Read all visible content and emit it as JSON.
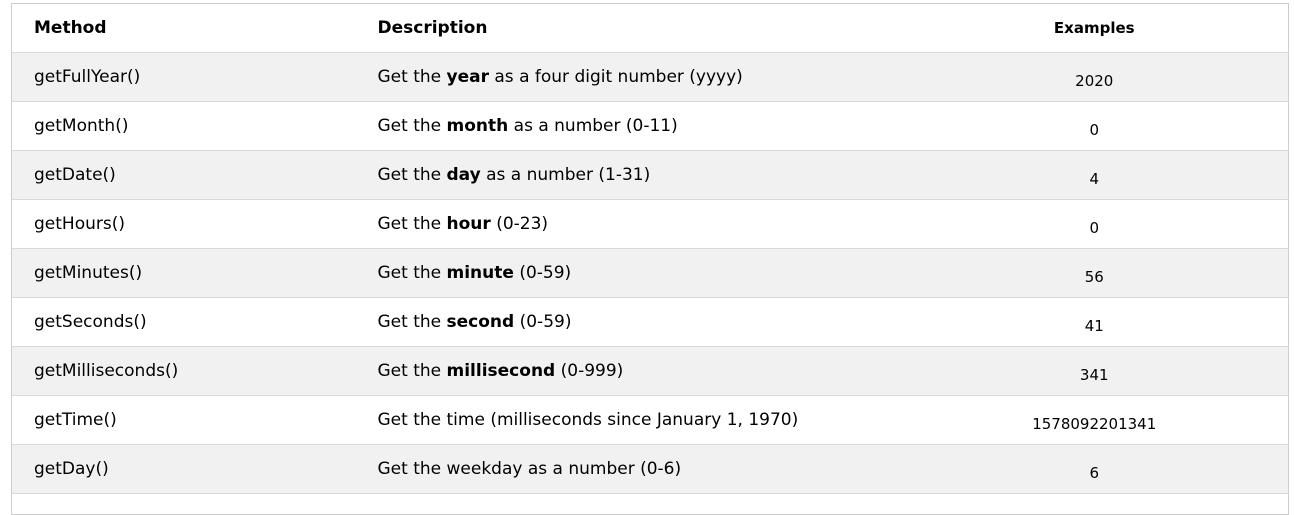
{
  "table": {
    "headers": {
      "method": "Method",
      "description": "Description",
      "examples": "Examples"
    },
    "rows": [
      {
        "method": "getFullYear()",
        "desc_pre": "Get the ",
        "desc_bold": "year",
        "desc_post": " as a four digit number (yyyy)",
        "example": "2020"
      },
      {
        "method": "getMonth()",
        "desc_pre": "Get the ",
        "desc_bold": "month",
        "desc_post": " as a number (0-11)",
        "example": "0"
      },
      {
        "method": "getDate()",
        "desc_pre": "Get the ",
        "desc_bold": "day",
        "desc_post": " as a number (1-31)",
        "example": "4"
      },
      {
        "method": "getHours()",
        "desc_pre": "Get the ",
        "desc_bold": "hour",
        "desc_post": " (0-23)",
        "example": "0"
      },
      {
        "method": "getMinutes()",
        "desc_pre": "Get the ",
        "desc_bold": "minute",
        "desc_post": " (0-59)",
        "example": "56"
      },
      {
        "method": "getSeconds()",
        "desc_pre": "Get the ",
        "desc_bold": "second",
        "desc_post": " (0-59)",
        "example": "41"
      },
      {
        "method": "getMilliseconds()",
        "desc_pre": "Get the ",
        "desc_bold": "millisecond",
        "desc_post": " (0-999)",
        "example": "341"
      },
      {
        "method": "getTime()",
        "desc_pre": "Get the time (milliseconds since January 1, 1970)",
        "desc_bold": "",
        "desc_post": "",
        "example": "1578092201341"
      },
      {
        "method": "getDay()",
        "desc_pre": "Get the weekday as a number (0-6)",
        "desc_bold": "",
        "desc_post": "",
        "example": "6"
      },
      {
        "method": "",
        "desc_pre": "",
        "desc_bold": "",
        "desc_post": "",
        "example": ""
      }
    ],
    "colors": {
      "stripe": "#f1f1f1",
      "row-border": "#d9d9d9",
      "outer-border": "#cccccc",
      "text": "#000000"
    }
  }
}
